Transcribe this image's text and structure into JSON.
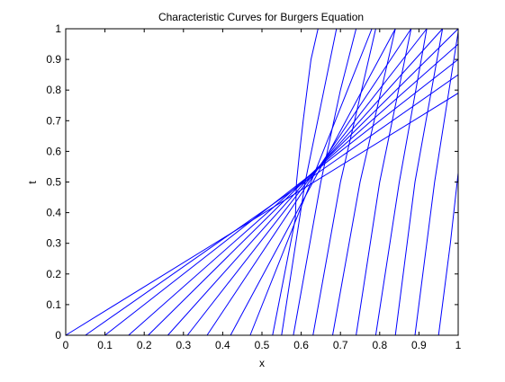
{
  "chart_data": {
    "type": "line",
    "title": "Characteristic Curves for Burgers Equation",
    "xlabel": "x",
    "ylabel": "t",
    "xlim": [
      0,
      1
    ],
    "ylim": [
      0,
      1
    ],
    "xticks": [
      "0",
      "0.1",
      "0.2",
      "0.3",
      "0.4",
      "0.5",
      "0.6",
      "0.7",
      "0.8",
      "0.9",
      "1"
    ],
    "yticks": [
      "0",
      "0.1",
      "0.2",
      "0.3",
      "0.4",
      "0.5",
      "0.6",
      "0.7",
      "0.8",
      "0.9",
      "1"
    ],
    "grid": false,
    "line_color": "#0000ff",
    "series": [
      {
        "x": [
          0.0,
          1.0
        ],
        "y": [
          0.0,
          0.79
        ]
      },
      {
        "x": [
          0.05,
          1.0
        ],
        "y": [
          0.0,
          0.85
        ]
      },
      {
        "x": [
          0.1,
          1.0
        ],
        "y": [
          0.0,
          0.9
        ]
      },
      {
        "x": [
          0.16,
          1.0
        ],
        "y": [
          0.0,
          0.95
        ]
      },
      {
        "x": [
          0.21,
          1.0
        ],
        "y": [
          0.0,
          1.0
        ]
      },
      {
        "x": [
          0.26,
          0.96
        ],
        "y": [
          0.0,
          1.0
        ]
      },
      {
        "x": [
          0.31,
          0.92
        ],
        "y": [
          0.0,
          1.0
        ]
      },
      {
        "x": [
          0.36,
          0.88
        ],
        "y": [
          0.0,
          1.0
        ]
      },
      {
        "x": [
          0.42,
          0.84
        ],
        "y": [
          0.0,
          1.0
        ]
      },
      {
        "x": [
          0.47,
          0.78
        ],
        "y": [
          0.0,
          1.0
        ]
      },
      {
        "x": [
          0.527,
          0.585,
          0.588,
          0.596,
          0.605,
          0.615,
          0.625,
          0.643
        ],
        "y": [
          0.0,
          0.38,
          0.5,
          0.6,
          0.7,
          0.8,
          0.9,
          1.0
        ]
      },
      {
        "x": [
          0.55,
          0.58,
          0.61,
          0.65,
          0.69
        ],
        "y": [
          0.0,
          0.25,
          0.5,
          0.75,
          1.0
        ]
      },
      {
        "x": [
          0.58,
          0.65,
          0.7,
          0.74
        ],
        "y": [
          0.0,
          0.5,
          0.8,
          1.0
        ]
      },
      {
        "x": [
          0.63,
          0.7,
          0.79
        ],
        "y": [
          0.0,
          0.5,
          1.0
        ]
      },
      {
        "x": [
          0.68,
          0.75,
          0.84
        ],
        "y": [
          0.0,
          0.5,
          1.0
        ]
      },
      {
        "x": [
          0.74,
          0.8,
          0.88
        ],
        "y": [
          0.0,
          0.5,
          1.0
        ]
      },
      {
        "x": [
          0.79,
          0.85,
          0.92
        ],
        "y": [
          0.0,
          0.5,
          1.0
        ]
      },
      {
        "x": [
          0.84,
          0.89,
          0.96
        ],
        "y": [
          0.0,
          0.5,
          1.0
        ]
      },
      {
        "x": [
          0.89,
          0.94,
          1.0
        ],
        "y": [
          0.0,
          0.5,
          0.99
        ]
      },
      {
        "x": [
          0.95,
          0.98,
          1.0
        ],
        "y": [
          0.0,
          0.3,
          0.53
        ]
      }
    ]
  }
}
